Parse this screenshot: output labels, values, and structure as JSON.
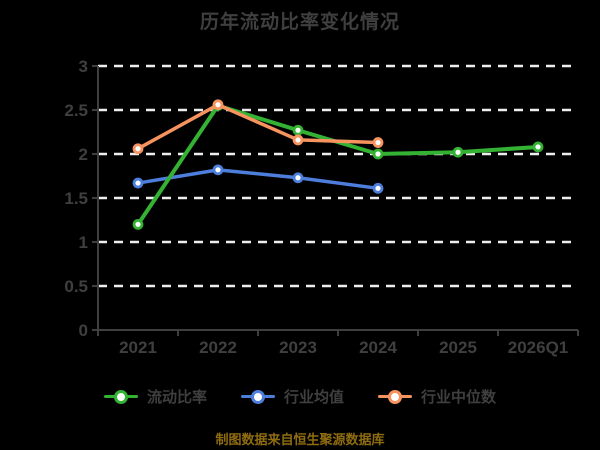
{
  "chart_data": {
    "type": "line",
    "title": "历年流动比率变化情况",
    "categories": [
      "2021",
      "2022",
      "2023",
      "2024",
      "2025",
      "2026Q1"
    ],
    "series": [
      {
        "key": "current-ratio",
        "name": "流动比率",
        "color": "#33b233",
        "line_width": 4,
        "values": [
          1.2,
          2.55,
          2.27,
          2.0,
          2.02,
          2.08
        ]
      },
      {
        "key": "industry-mean",
        "name": "行业均值",
        "color": "#4d7edb",
        "line_width": 3.5,
        "values": [
          1.67,
          1.82,
          1.73,
          1.61,
          null,
          null
        ]
      },
      {
        "key": "industry-median",
        "name": "行业中位数",
        "color": "#f7935f",
        "line_width": 3.5,
        "values": [
          2.06,
          2.56,
          2.16,
          2.13,
          null,
          null
        ]
      }
    ],
    "ylim": [
      0,
      3
    ],
    "yticks": [
      0,
      0.5,
      1,
      1.5,
      2,
      2.5,
      3
    ],
    "grid": "horizontal-dashed",
    "legend_position": "bottom"
  },
  "footer": {
    "text": "制图数据来自恒生聚源数据库"
  },
  "style": {
    "background": "#000000",
    "text_color": "#3f3f3f",
    "axis_color": "#3f3f3f",
    "gridline_color": "#ededed",
    "footer_color": "#8f6c10",
    "marker_fill": "#ffffff"
  }
}
